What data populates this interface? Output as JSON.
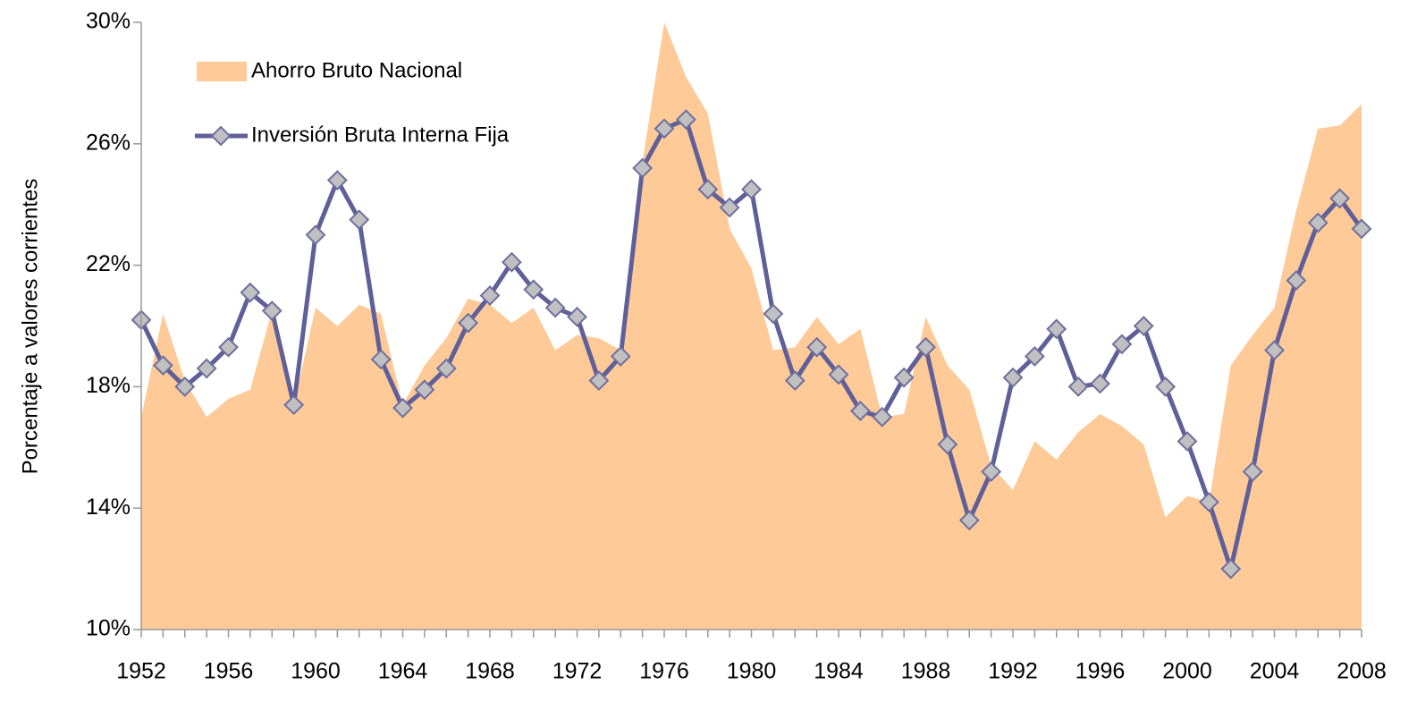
{
  "chart_data": {
    "type": "combo",
    "y_label": "Porcentaje a valores corrientes",
    "x": [
      1952,
      1953,
      1954,
      1955,
      1956,
      1957,
      1958,
      1959,
      1960,
      1961,
      1962,
      1963,
      1964,
      1965,
      1966,
      1967,
      1968,
      1969,
      1970,
      1971,
      1972,
      1973,
      1974,
      1975,
      1976,
      1977,
      1978,
      1979,
      1980,
      1981,
      1982,
      1983,
      1984,
      1985,
      1986,
      1987,
      1988,
      1989,
      1990,
      1991,
      1992,
      1993,
      1994,
      1995,
      1996,
      1997,
      1998,
      1999,
      2000,
      2001,
      2002,
      2003,
      2004,
      2005,
      2006,
      2007,
      2008
    ],
    "xlim": [
      1952,
      2008
    ],
    "xticks": [
      1952,
      1956,
      1960,
      1964,
      1968,
      1972,
      1976,
      1980,
      1984,
      1988,
      1992,
      1996,
      2000,
      2004,
      2008
    ],
    "ylim": [
      10,
      30
    ],
    "yticks": [
      {
        "value": 10,
        "label": "10%"
      },
      {
        "value": 14,
        "label": "14%"
      },
      {
        "value": 18,
        "label": "18%"
      },
      {
        "value": 22,
        "label": "22%"
      },
      {
        "value": 26,
        "label": "26%"
      },
      {
        "value": 30,
        "label": "30%"
      }
    ],
    "grid": false,
    "series": [
      {
        "name": "Ahorro Bruto Nacional",
        "type": "area",
        "color": "#fdca98",
        "values": [
          17.0,
          20.4,
          18.2,
          17.0,
          17.6,
          17.9,
          20.5,
          17.4,
          20.6,
          20.0,
          20.7,
          20.4,
          17.4,
          18.7,
          19.6,
          20.9,
          20.7,
          20.1,
          20.6,
          19.2,
          19.7,
          19.6,
          19.2,
          25.4,
          30.0,
          28.2,
          27.0,
          23.2,
          21.9,
          19.2,
          19.3,
          20.3,
          19.4,
          19.9,
          17.0,
          17.1,
          20.3,
          18.7,
          17.9,
          15.4,
          14.6,
          16.2,
          15.6,
          16.5,
          17.1,
          16.7,
          16.1,
          13.7,
          14.4,
          14.2,
          18.7,
          19.7,
          20.6,
          23.8,
          26.5,
          26.6,
          27.3
        ]
      },
      {
        "name": "Inversión Bruta Interna Fija",
        "type": "line",
        "color": "#5f5f99",
        "marker_color": "#c0c0c0",
        "values": [
          20.2,
          18.7,
          18.0,
          18.6,
          19.3,
          21.1,
          20.5,
          17.4,
          23.0,
          24.8,
          23.5,
          18.9,
          17.3,
          17.9,
          18.6,
          20.1,
          21.0,
          22.1,
          21.2,
          20.6,
          20.3,
          18.2,
          19.0,
          25.2,
          26.5,
          26.8,
          24.5,
          23.9,
          24.5,
          20.4,
          18.2,
          19.3,
          18.4,
          17.2,
          17.0,
          18.3,
          19.3,
          16.1,
          13.6,
          15.2,
          18.3,
          19.0,
          19.9,
          18.0,
          18.1,
          19.4,
          20.0,
          18.0,
          16.2,
          14.2,
          12.0,
          15.2,
          19.2,
          21.5,
          23.4,
          24.2,
          23.2
        ]
      }
    ]
  }
}
